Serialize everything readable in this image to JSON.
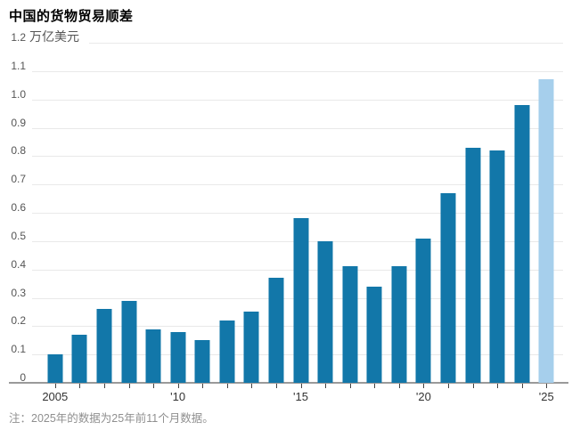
{
  "header": {
    "title": "中国的货物贸易顺差"
  },
  "chart_data": {
    "type": "bar",
    "title": "中国的货物贸易顺差",
    "ylabel_unit": "万亿美元",
    "categories": [
      2005,
      2006,
      2007,
      2008,
      2009,
      2010,
      2011,
      2012,
      2013,
      2014,
      2015,
      2016,
      2017,
      2018,
      2019,
      2020,
      2021,
      2022,
      2023,
      2024,
      2025
    ],
    "values": [
      0.1,
      0.17,
      0.26,
      0.29,
      0.19,
      0.18,
      0.15,
      0.22,
      0.25,
      0.37,
      0.58,
      0.5,
      0.41,
      0.34,
      0.41,
      0.51,
      0.67,
      0.83,
      0.82,
      0.98,
      1.07
    ],
    "highlight_index": 20,
    "ylim": [
      0,
      1.2
    ],
    "y_tick_step": 0.1,
    "y_tick_labels_top_down": [
      "1.2",
      "1.1",
      "1.0",
      "0.9",
      "0.8",
      "0.7",
      "0.6",
      "0.5",
      "0.4",
      "0.3",
      "0.2",
      "0.1",
      "0"
    ],
    "x_tick_labels": [
      {
        "index": 0,
        "label": "2005"
      },
      {
        "index": 5,
        "label": "'10"
      },
      {
        "index": 10,
        "label": "'15"
      },
      {
        "index": 15,
        "label": "'20"
      },
      {
        "index": 20,
        "label": "'25"
      }
    ],
    "grid": "horizontal",
    "legend": "none",
    "colors": {
      "bar": "#1277a9",
      "bar_highlight": "#a6cfec",
      "gridline": "#e9e9e9",
      "baseline": "#9a9a9a"
    }
  },
  "footer": {
    "note": "注：2025年的数据为25年前11个月数据。"
  }
}
